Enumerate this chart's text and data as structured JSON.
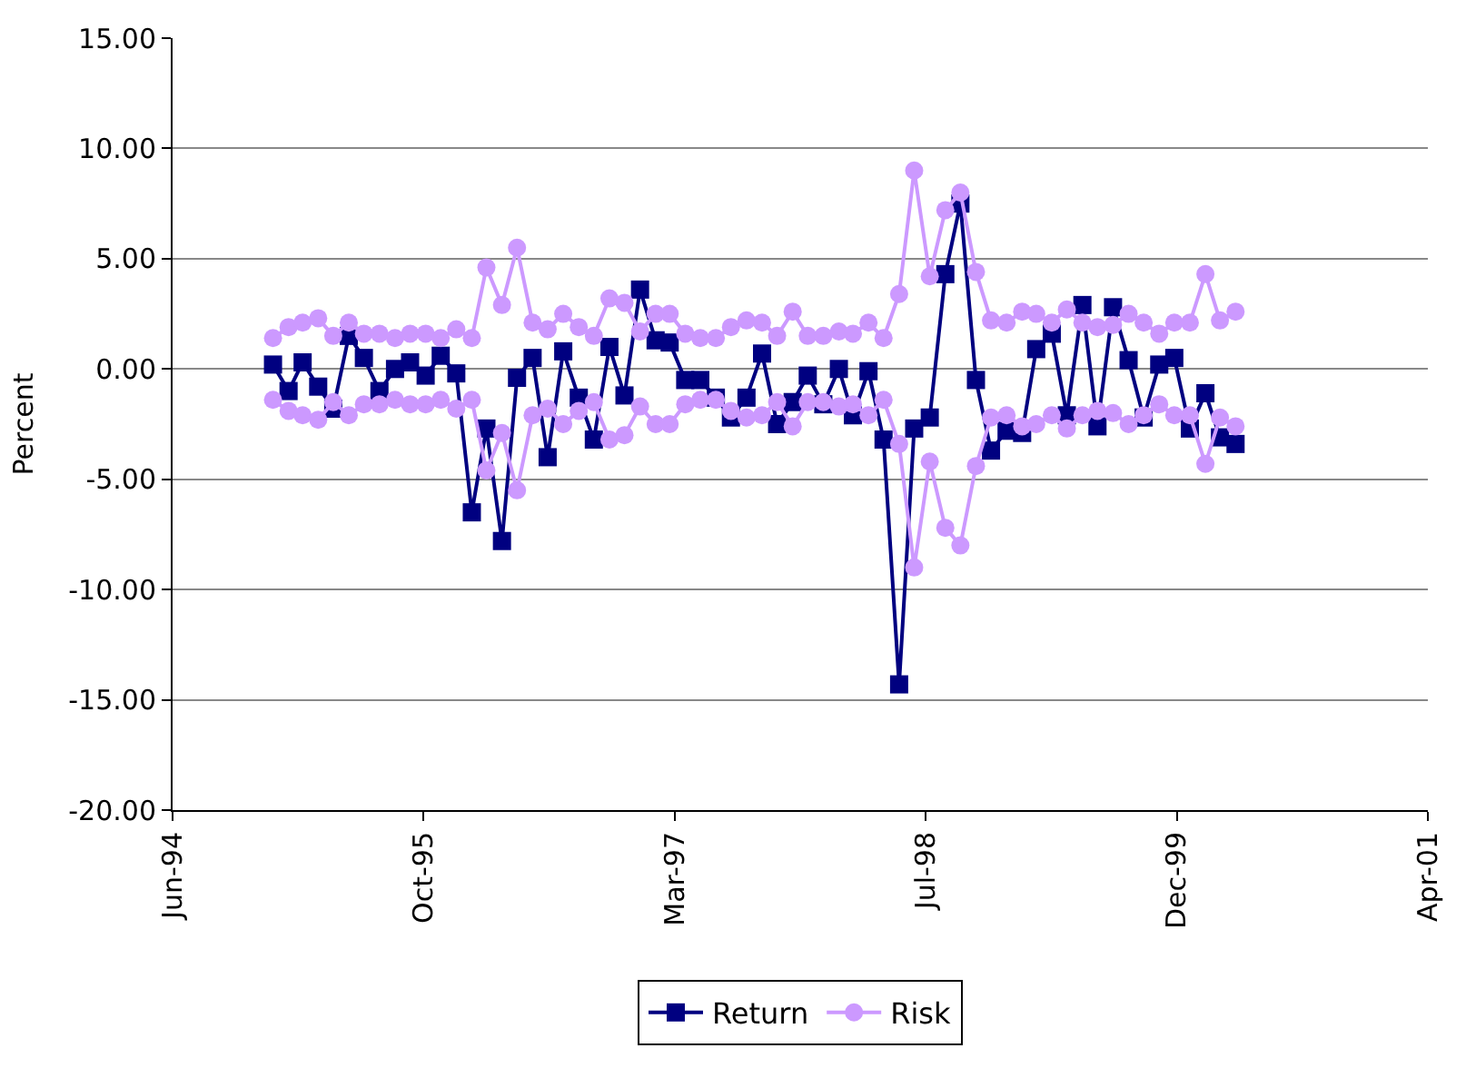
{
  "chart_data": {
    "type": "line",
    "ylabel": "Percent",
    "x": [
      "1995-01",
      "1995-02",
      "1995-03",
      "1995-04",
      "1995-05",
      "1995-06",
      "1995-07",
      "1995-08",
      "1995-09",
      "1995-10",
      "1995-11",
      "1995-12",
      "1996-01",
      "1996-02",
      "1996-03",
      "1996-04",
      "1996-05",
      "1996-06",
      "1996-07",
      "1996-08",
      "1996-09",
      "1996-10",
      "1996-11",
      "1996-12",
      "1997-01",
      "1997-02",
      "1997-03",
      "1997-04",
      "1997-05",
      "1997-06",
      "1997-07",
      "1997-08",
      "1997-09",
      "1997-10",
      "1997-11",
      "1997-12",
      "1998-01",
      "1998-02",
      "1998-03",
      "1998-04",
      "1998-05",
      "1998-06",
      "1998-07",
      "1998-08",
      "1998-09",
      "1998-10",
      "1998-11",
      "1998-12",
      "1999-01",
      "1999-02",
      "1999-03",
      "1999-04",
      "1999-05",
      "1999-06",
      "1999-07",
      "1999-08",
      "1999-09",
      "1999-10",
      "1999-11",
      "1999-12",
      "2000-01",
      "2000-02",
      "2000-03",
      "2000-04"
    ],
    "series": [
      {
        "name": "Return",
        "color": "#000080",
        "marker": "square",
        "values": [
          0.2,
          -1.0,
          0.3,
          -0.8,
          -1.8,
          1.5,
          0.5,
          -1.0,
          0.0,
          0.3,
          -0.3,
          0.6,
          -0.2,
          -6.5,
          -2.7,
          -7.8,
          -0.4,
          0.5,
          -4.0,
          0.8,
          -1.3,
          -3.2,
          1.0,
          -1.2,
          3.6,
          1.3,
          1.2,
          -0.5,
          -0.5,
          -1.3,
          -2.2,
          -1.3,
          0.7,
          -2.5,
          -1.5,
          -0.3,
          -1.6,
          0.0,
          -2.1,
          -0.1,
          -3.2,
          -14.3,
          -2.7,
          -2.2,
          4.3,
          7.5,
          -0.5,
          -3.7,
          -2.8,
          -2.9,
          0.9,
          1.6,
          -2.1,
          2.9,
          -2.6,
          2.8,
          0.4,
          -2.2,
          0.2,
          0.5,
          -2.7,
          -1.1,
          -3.1,
          -3.4
        ]
      },
      {
        "name": "Risk",
        "color": "#cc99ff",
        "marker": "circle",
        "values": [
          1.4,
          1.9,
          2.1,
          2.3,
          1.5,
          2.1,
          1.6,
          1.6,
          1.4,
          1.6,
          1.6,
          1.4,
          1.8,
          1.4,
          4.6,
          2.9,
          5.5,
          2.1,
          1.8,
          2.5,
          1.9,
          1.5,
          3.2,
          3.0,
          1.7,
          2.5,
          2.5,
          1.6,
          1.4,
          1.4,
          1.9,
          2.2,
          2.1,
          1.5,
          2.6,
          1.5,
          1.5,
          1.7,
          1.6,
          2.1,
          1.4,
          3.4,
          9.0,
          4.2,
          7.2,
          8.0,
          4.4,
          2.2,
          2.1,
          2.6,
          2.5,
          2.1,
          2.7,
          2.1,
          1.9,
          2.0,
          2.5,
          2.1,
          1.6,
          2.1,
          2.1,
          4.3,
          2.2,
          2.6
        ]
      },
      {
        "color": "#cc99ff",
        "marker": "circle",
        "values": [
          -1.4,
          -1.9,
          -2.1,
          -2.3,
          -1.5,
          -2.1,
          -1.6,
          -1.6,
          -1.4,
          -1.6,
          -1.6,
          -1.4,
          -1.8,
          -1.4,
          -4.6,
          -2.9,
          -5.5,
          -2.1,
          -1.8,
          -2.5,
          -1.9,
          -1.5,
          -3.2,
          -3.0,
          -1.7,
          -2.5,
          -2.5,
          -1.6,
          -1.4,
          -1.4,
          -1.9,
          -2.2,
          -2.1,
          -1.5,
          -2.6,
          -1.5,
          -1.5,
          -1.7,
          -1.6,
          -2.1,
          -1.4,
          -3.4,
          -9.0,
          -4.2,
          -7.2,
          -8.0,
          -4.4,
          -2.2,
          -2.1,
          -2.6,
          -2.5,
          -2.1,
          -2.7,
          -2.1,
          -1.9,
          -2.0,
          -2.5,
          -2.1,
          -1.6,
          -2.1,
          -2.1,
          -4.3,
          -2.2,
          -2.6
        ]
      }
    ],
    "xlim": [
      "1994-06-15",
      "2001-04-19"
    ],
    "xticks": [
      {
        "value": "1994-06-15",
        "label": "Jun-94"
      },
      {
        "value": "1995-10-28",
        "label": "Oct-95"
      },
      {
        "value": "1997-03-11",
        "label": "Mar-97"
      },
      {
        "value": "1998-07-24",
        "label": "Jul-98"
      },
      {
        "value": "1999-12-06",
        "label": "Dec-99"
      },
      {
        "value": "2001-04-19",
        "label": "Apr-01"
      }
    ],
    "ylim": [
      -20,
      15
    ],
    "yticks": [
      {
        "value": -20,
        "label": "-20.00"
      },
      {
        "value": -15,
        "label": "-15.00"
      },
      {
        "value": -10,
        "label": "-10.00"
      },
      {
        "value": -5,
        "label": "-5.00"
      },
      {
        "value": 0,
        "label": "0.00"
      },
      {
        "value": 5,
        "label": "5.00"
      },
      {
        "value": 10,
        "label": "10.00"
      },
      {
        "value": 15,
        "label": "15.00"
      }
    ],
    "grid": "y",
    "legend": "bottom",
    "line_style": "solid"
  }
}
